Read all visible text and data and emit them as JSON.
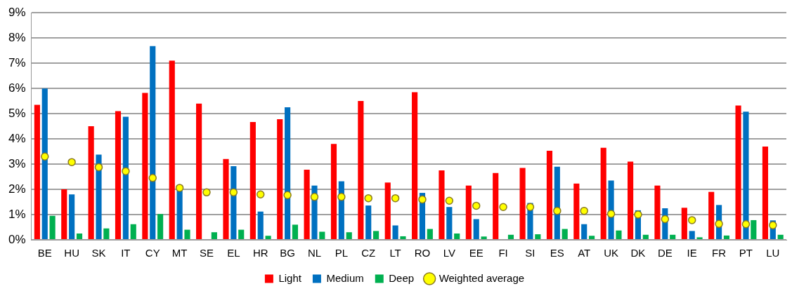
{
  "chart_data": {
    "type": "bar",
    "categories": [
      "BE",
      "HU",
      "SK",
      "IT",
      "CY",
      "MT",
      "SE",
      "EL",
      "HR",
      "BG",
      "NL",
      "PL",
      "CZ",
      "LT",
      "RO",
      "LV",
      "EE",
      "FI",
      "SI",
      "ES",
      "AT",
      "UK",
      "DK",
      "DE",
      "IE",
      "FR",
      "PT",
      "LU"
    ],
    "series": [
      {
        "name": "Light",
        "color": "#ff0000",
        "values": [
          5.35,
          2.0,
          4.5,
          5.1,
          5.82,
          7.1,
          5.4,
          3.2,
          4.67,
          4.78,
          2.78,
          3.8,
          5.5,
          2.27,
          5.85,
          2.75,
          2.15,
          2.65,
          2.85,
          3.53,
          2.23,
          3.65,
          3.1,
          2.15,
          1.27,
          1.9,
          5.32,
          3.7
        ]
      },
      {
        "name": "Medium",
        "color": "#0070c0",
        "values": [
          6.0,
          1.8,
          3.38,
          4.88,
          7.68,
          2.0,
          null,
          2.92,
          1.12,
          5.25,
          2.15,
          2.32,
          1.36,
          0.57,
          1.86,
          1.3,
          0.82,
          null,
          1.46,
          2.9,
          0.62,
          2.35,
          1.17,
          1.25,
          0.35,
          1.38,
          5.08,
          0.77
        ]
      },
      {
        "name": "Deep",
        "color": "#00b050",
        "values": [
          0.95,
          0.25,
          0.45,
          0.62,
          1.02,
          0.4,
          0.3,
          0.4,
          0.16,
          0.6,
          0.32,
          0.3,
          0.35,
          0.14,
          0.43,
          0.25,
          0.13,
          0.2,
          0.22,
          0.43,
          0.16,
          0.37,
          0.2,
          0.2,
          0.1,
          0.17,
          0.78,
          0.2
        ]
      },
      {
        "name": "Weighted average",
        "type": "scatter",
        "color": "#ffff00",
        "marker": "circle",
        "x": [
          "BE",
          "HU",
          "SK",
          "IT",
          "CY",
          "MT",
          "SE",
          "EL",
          "HR",
          "BG",
          "NL",
          "PL",
          "CZ",
          "LT",
          "RO",
          "LV",
          "EE",
          "FI",
          "SI",
          "ES",
          "AT",
          "UK",
          "DK",
          "DE",
          "IE",
          "FR",
          "PT",
          "LU"
        ],
        "values": [
          3.3,
          3.08,
          2.88,
          2.72,
          2.45,
          2.06,
          1.88,
          1.88,
          1.8,
          1.77,
          1.7,
          1.7,
          1.65,
          1.65,
          1.6,
          1.55,
          1.35,
          1.3,
          1.3,
          1.15,
          1.15,
          1.03,
          1.0,
          0.82,
          0.78,
          0.63,
          0.62,
          0.58
        ]
      }
    ],
    "ylim": [
      0,
      9
    ],
    "yticks": [
      {
        "value": 0,
        "label": "0%"
      },
      {
        "value": 1,
        "label": "1%"
      },
      {
        "value": 2,
        "label": "2%"
      },
      {
        "value": 3,
        "label": "3%"
      },
      {
        "value": 4,
        "label": "4%"
      },
      {
        "value": 5,
        "label": "5%"
      },
      {
        "value": 6,
        "label": "6%"
      },
      {
        "value": 7,
        "label": "7%"
      },
      {
        "value": 8,
        "label": "8%"
      },
      {
        "value": 9,
        "label": "9%"
      }
    ],
    "grid": "y",
    "legend": "bottom"
  }
}
